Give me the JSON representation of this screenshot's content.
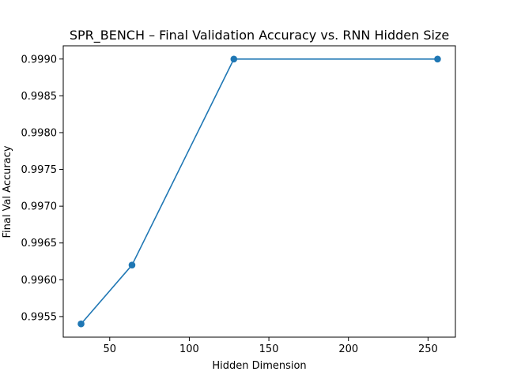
{
  "chart_data": {
    "type": "line",
    "title": "SPR_BENCH – Final Validation Accuracy vs. RNN Hidden Size",
    "xlabel": "Hidden Dimension",
    "ylabel": "Final Val Accuracy",
    "x": [
      32,
      64,
      128,
      256
    ],
    "series": [
      {
        "values": [
          0.9954,
          0.9962,
          0.999,
          0.999
        ]
      }
    ],
    "xlim": [
      20.8,
      267.2
    ],
    "ylim": [
      0.99522,
      0.99918
    ],
    "xticks": [
      50,
      100,
      150,
      200,
      250
    ],
    "xtick_labels": [
      "50",
      "100",
      "150",
      "200",
      "250"
    ],
    "yticks": [
      0.9955,
      0.996,
      0.9965,
      0.997,
      0.9975,
      0.998,
      0.9985,
      0.999
    ],
    "ytick_labels": [
      "0.9955",
      "0.9960",
      "0.9965",
      "0.9970",
      "0.9975",
      "0.9980",
      "0.9985",
      "0.9990"
    ],
    "grid": false,
    "legend": "none",
    "line_color": "#1f77b4",
    "marker": "circle"
  }
}
